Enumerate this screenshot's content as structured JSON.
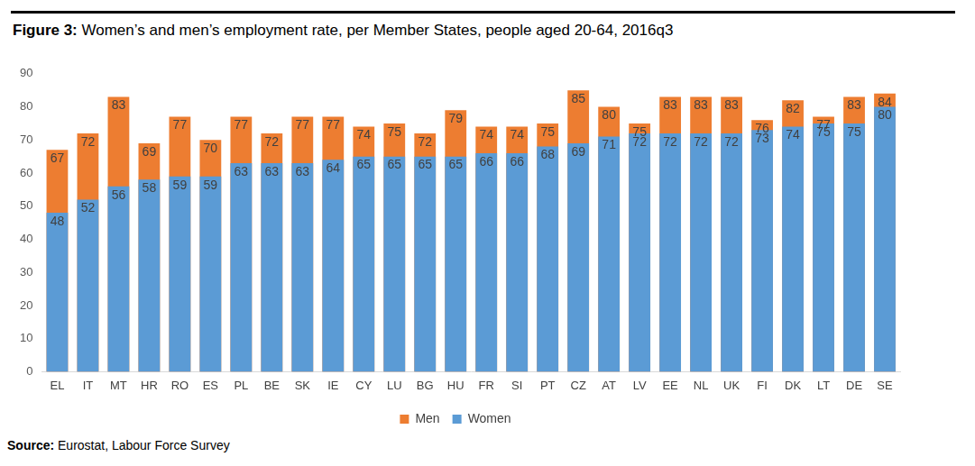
{
  "chart_data": {
    "type": "bar",
    "title": "Figure 3: Women’s and men’s employment rate, per Member States, people aged 20-64, 2016q3",
    "source": "Source: Eurostat, Labour Force Survey",
    "categories": [
      "EL",
      "IT",
      "MT",
      "HR",
      "RO",
      "ES",
      "PL",
      "BE",
      "SK",
      "IE",
      "CY",
      "LU",
      "BG",
      "HU",
      "FR",
      "SI",
      "PT",
      "CZ",
      "AT",
      "LV",
      "EE",
      "NL",
      "UK",
      "FI",
      "DK",
      "LT",
      "DE",
      "SE"
    ],
    "series": [
      {
        "name": "Men",
        "color": "#ed7d31",
        "values": [
          67,
          72,
          83,
          69,
          77,
          70,
          77,
          72,
          77,
          77,
          74,
          75,
          72,
          79,
          74,
          74,
          75,
          85,
          80,
          75,
          83,
          83,
          83,
          76,
          82,
          77,
          83,
          84
        ]
      },
      {
        "name": "Women",
        "color": "#5b9bd5",
        "values": [
          48,
          52,
          56,
          58,
          59,
          59,
          63,
          63,
          63,
          64,
          65,
          65,
          65,
          65,
          66,
          66,
          68,
          69,
          71,
          72,
          72,
          72,
          72,
          73,
          74,
          75,
          75,
          80
        ]
      }
    ],
    "ylim": [
      0,
      90
    ],
    "yticks": [
      0,
      10,
      20,
      30,
      40,
      50,
      60,
      70,
      80,
      90
    ],
    "grid": false,
    "stacked": false,
    "legend": "bottom",
    "data_labels": true
  }
}
